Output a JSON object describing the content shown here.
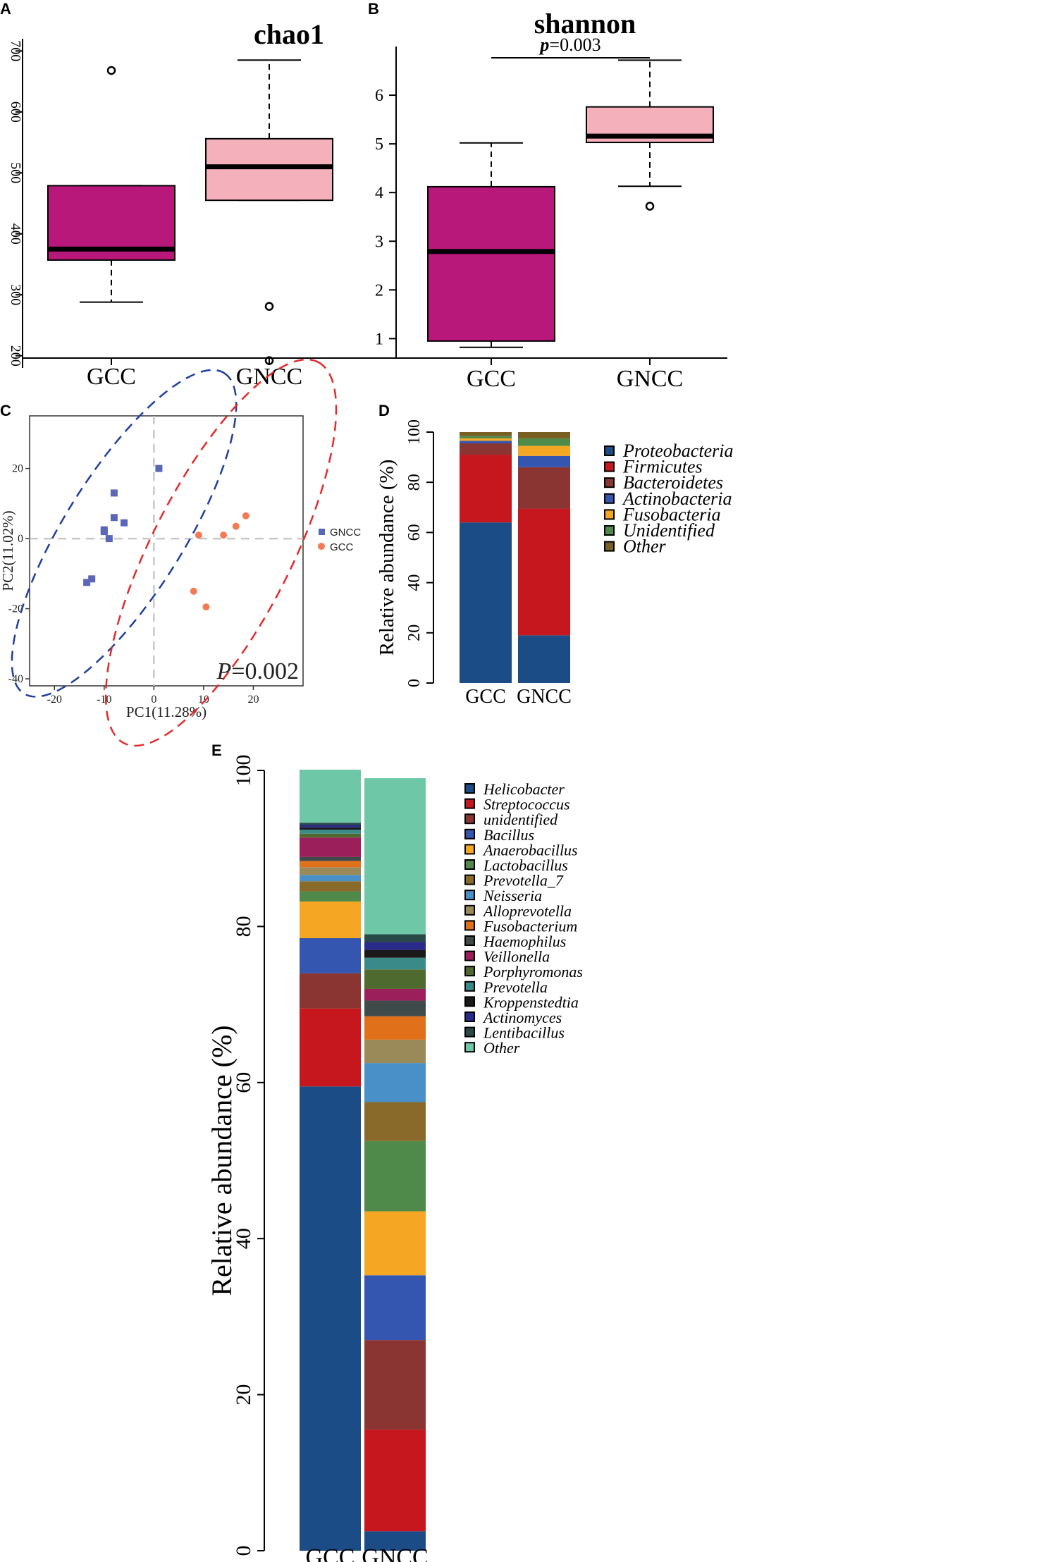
{
  "chart_data": [
    {
      "id": "A",
      "panel_label": "A",
      "type": "box",
      "title": "chao1",
      "categories": [
        "GCC",
        "GNCC"
      ],
      "yticks": [
        "200",
        "300",
        "400",
        "500",
        "600",
        "700"
      ],
      "ylim": [
        180,
        720
      ],
      "boxes": [
        {
          "name": "GCC",
          "q1": 357,
          "median": 375,
          "q3": 479,
          "whisker_low": 288,
          "whisker_high": 479,
          "outliers": [
            668
          ],
          "color": "#b8187a"
        },
        {
          "name": "GNCC",
          "q1": 455,
          "median": 510,
          "q3": 556,
          "whisker_low": 455,
          "whisker_high": 685,
          "outliers": [
            281,
            192
          ],
          "color": "#f4b1bc"
        }
      ]
    },
    {
      "id": "B",
      "panel_label": "B",
      "type": "box",
      "title": "shannon",
      "categories": [
        "GCC",
        "GNCC"
      ],
      "yticks": [
        "1",
        "2",
        "3",
        "4",
        "5",
        "6"
      ],
      "ylim": [
        0.6,
        7.0
      ],
      "annotation": {
        "p_label": "p",
        "p_value": "=0.003"
      },
      "boxes": [
        {
          "name": "GCC",
          "q1": 0.95,
          "median": 2.79,
          "q3": 4.12,
          "whisker_low": 0.82,
          "whisker_high": 5.02,
          "outliers": [],
          "color": "#b8187a"
        },
        {
          "name": "GNCC",
          "q1": 5.03,
          "median": 5.16,
          "q3": 5.76,
          "whisker_low": 4.13,
          "whisker_high": 6.72,
          "outliers": [
            3.72
          ],
          "color": "#f4b1bc"
        }
      ]
    },
    {
      "id": "C",
      "panel_label": "C",
      "type": "scatter",
      "xlabel": "PC1(11.28%)",
      "ylabel": "PC2(11.02%)",
      "xticks": [
        "-20",
        "-10",
        "0",
        "10",
        "20"
      ],
      "yticks": [
        "-40",
        "-20",
        "0",
        "20"
      ],
      "xlim": [
        -25,
        30
      ],
      "ylim": [
        -42,
        35
      ],
      "p_text": {
        "p": "P",
        "value": "=0.002"
      },
      "series": [
        {
          "name": "GNCC",
          "marker": "square",
          "color": "#5a66b8",
          "ellipse_color": "#1f3f9e",
          "points": [
            [
              1,
              20
            ],
            [
              -8,
              13
            ],
            [
              -8,
              6
            ],
            [
              -6,
              4.5
            ],
            [
              -10,
              2.5
            ],
            [
              -10,
              2
            ],
            [
              -9,
              0
            ],
            [
              -13.5,
              -12.5
            ],
            [
              -12.5,
              -11.5
            ]
          ],
          "ellipse": {
            "cx": -6,
            "cy": 1.5,
            "rx": 38,
            "ry": 12,
            "angle": 58
          }
        },
        {
          "name": "GCC",
          "marker": "circle",
          "color": "#f47a55",
          "ellipse_color": "#e42a2a",
          "points": [
            [
              9,
              1
            ],
            [
              14,
              1
            ],
            [
              16.5,
              3.5
            ],
            [
              18.5,
              6.5
            ],
            [
              8,
              -15
            ],
            [
              10.5,
              -19.5
            ]
          ],
          "ellipse": {
            "cx": 13.5,
            "cy": -4,
            "rx": 43,
            "ry": 14,
            "angle": 63
          }
        }
      ]
    },
    {
      "id": "D",
      "panel_label": "D",
      "type": "bar",
      "stacked": true,
      "ylabel": "Relative abundance (%)",
      "categories": [
        "GCC",
        "GNCC"
      ],
      "yticks": [
        "0",
        "20",
        "40",
        "60",
        "80",
        "100"
      ],
      "ylim": [
        0,
        100
      ],
      "series": [
        {
          "name": "Proteobacteria",
          "color": "#1b4c86",
          "values": [
            64,
            19
          ]
        },
        {
          "name": "Firmicutes",
          "color": "#c6161e",
          "values": [
            27,
            50.5
          ]
        },
        {
          "name": "Bacteroidetes",
          "color": "#8a3532",
          "values": [
            4.5,
            16.5
          ]
        },
        {
          "name": "Actinobacteria",
          "color": "#3456b0",
          "values": [
            1,
            4.5
          ]
        },
        {
          "name": "Fusobacteria",
          "color": "#f5a623",
          "values": [
            1,
            4
          ]
        },
        {
          "name": "Unidentified",
          "color": "#4f8a4b",
          "values": [
            1,
            3
          ]
        },
        {
          "name": "Other",
          "color": "#7a5f22",
          "values": [
            1.5,
            2.5
          ]
        }
      ]
    },
    {
      "id": "E",
      "panel_label": "E",
      "type": "bar",
      "stacked": true,
      "ylabel": "Relative abundance (%)",
      "categories": [
        "GCC",
        "GNCC"
      ],
      "yticks": [
        "0",
        "20",
        "40",
        "60",
        "80",
        "100"
      ],
      "ylim": [
        0,
        100
      ],
      "series": [
        {
          "name": "Helicobacter",
          "color": "#1b4c86",
          "values": [
            59.5,
            2.5
          ]
        },
        {
          "name": "Streptococcus",
          "color": "#c6161e",
          "values": [
            10,
            13
          ]
        },
        {
          "name": "unidentified",
          "color": "#8a3532",
          "values": [
            4.5,
            11.5
          ]
        },
        {
          "name": "Bacillus",
          "color": "#3456b0",
          "values": [
            4.5,
            8.3
          ]
        },
        {
          "name": "Anaerobacillus",
          "color": "#f5a623",
          "values": [
            4.7,
            8.2
          ]
        },
        {
          "name": "Lactobacillus",
          "color": "#4f8a4b",
          "values": [
            1.3,
            9
          ]
        },
        {
          "name": "Prevotella_7",
          "color": "#8a6a2a",
          "values": [
            1.3,
            5
          ]
        },
        {
          "name": "Neisseria",
          "color": "#4a90c8",
          "values": [
            0.8,
            5
          ]
        },
        {
          "name": "Alloprevotella",
          "color": "#9a8a5a",
          "values": [
            1,
            3
          ]
        },
        {
          "name": "Fusobacterium",
          "color": "#e0701a",
          "values": [
            0.8,
            3
          ]
        },
        {
          "name": "Haemophilus",
          "color": "#3f4a4a",
          "values": [
            0.5,
            2
          ]
        },
        {
          "name": "Veillonella",
          "color": "#9a1f5a",
          "values": [
            2.5,
            1.5
          ]
        },
        {
          "name": "Porphyromonas",
          "color": "#4f6a2f",
          "values": [
            0.5,
            2.5
          ]
        },
        {
          "name": "Prevotella",
          "color": "#3a8a8a",
          "values": [
            0.5,
            1.5
          ]
        },
        {
          "name": "Kroppenstedtia",
          "color": "#1a1a1a",
          "values": [
            0.3,
            1
          ]
        },
        {
          "name": "Actinomyces",
          "color": "#2a2a8a",
          "values": [
            0.3,
            1
          ]
        },
        {
          "name": "Lentibacillus",
          "color": "#2a4a4a",
          "values": [
            0.3,
            1
          ]
        },
        {
          "name": "Other",
          "color": "#6ec8a8",
          "values": [
            6.8,
            20
          ]
        }
      ]
    }
  ]
}
